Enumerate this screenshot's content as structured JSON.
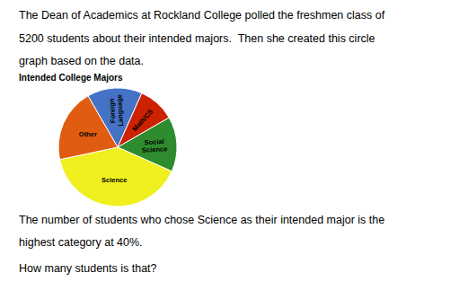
{
  "chart_data": {
    "type": "pie",
    "title": "Intended College Majors",
    "categories": [
      "Foreign\nLanguage",
      "Math/CS",
      "Social\nScience",
      "Science",
      "Other"
    ],
    "values": [
      15,
      10,
      15,
      40,
      20
    ],
    "colors": [
      "#4472c4",
      "#cc2200",
      "#2e8b2e",
      "#f0f020",
      "#e05c10"
    ],
    "annotations": [
      "The Dean of Academics at Rockland College polled the freshmen class of",
      "5200 students about their intended majors.  Then she created this circle",
      "graph based on the data.",
      "The number of students who chose Science as their intended major is the",
      "highest category at 40%.",
      "How many students is that?"
    ]
  }
}
